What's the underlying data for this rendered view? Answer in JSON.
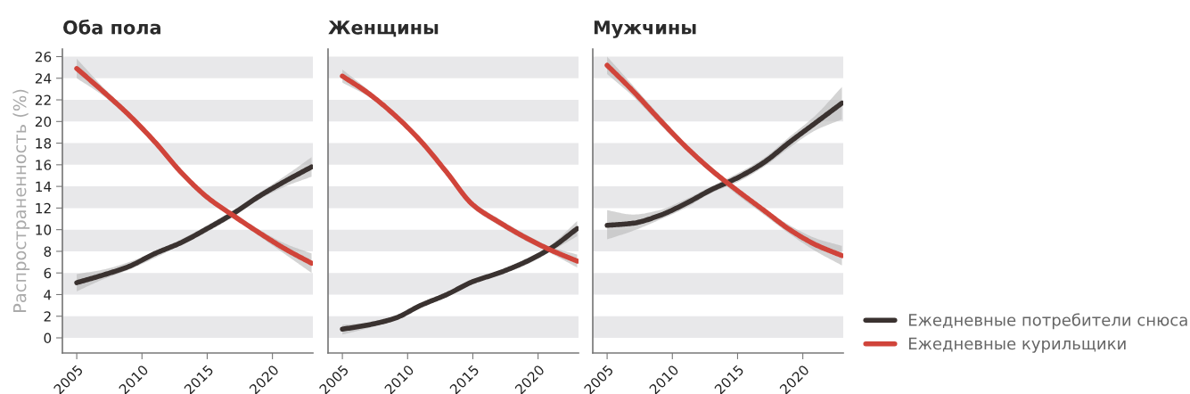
{
  "chart_data": [
    {
      "type": "line",
      "title": "Оба пола",
      "ylabel": "Распространенность (%)",
      "x": [
        2005,
        2007,
        2009,
        2011,
        2013,
        2015,
        2017,
        2019,
        2021,
        2023
      ],
      "xlim": [
        2003.9,
        2023.1
      ],
      "xticks": [
        2005,
        2010,
        2015,
        2020
      ],
      "ylim": [
        -1.4,
        26.7
      ],
      "yticks": [
        0,
        2,
        4,
        6,
        8,
        10,
        12,
        14,
        16,
        18,
        20,
        22,
        24,
        26
      ],
      "grid": false,
      "legend": "right",
      "bands": [
        {
          "axis": "y",
          "from": 0,
          "to": 2,
          "color": "#e8e8ea"
        },
        {
          "axis": "y",
          "from": 4,
          "to": 6,
          "color": "#e8e8ea"
        },
        {
          "axis": "y",
          "from": 8,
          "to": 10,
          "color": "#e8e8ea"
        },
        {
          "axis": "y",
          "from": 12,
          "to": 14,
          "color": "#e8e8ea"
        },
        {
          "axis": "y",
          "from": 16,
          "to": 18,
          "color": "#e8e8ea"
        },
        {
          "axis": "y",
          "from": 20,
          "to": 22,
          "color": "#e8e8ea"
        },
        {
          "axis": "y",
          "from": 24,
          "to": 26,
          "color": "#e8e8ea"
        }
      ],
      "series": [
        {
          "name": "Ежедневные потребители снюса",
          "color": "#3a3230",
          "values": [
            5.1,
            5.8,
            6.6,
            7.8,
            8.8,
            10.1,
            11.5,
            13.1,
            14.5,
            15.8
          ],
          "lower": [
            4.3,
            5.4,
            6.3,
            7.4,
            8.6,
            9.8,
            11.2,
            12.8,
            14.0,
            14.9
          ],
          "upper": [
            5.9,
            6.3,
            7.0,
            8.0,
            9.1,
            10.4,
            11.8,
            13.4,
            15.0,
            16.7
          ]
        },
        {
          "name": "Ежедневные курильщики",
          "color": "#d0443a",
          "values": [
            24.9,
            22.8,
            20.6,
            18.1,
            15.3,
            13.0,
            11.3,
            9.7,
            8.2,
            6.9
          ],
          "lower": [
            24.0,
            22.4,
            20.3,
            17.8,
            15.0,
            12.7,
            11.1,
            9.4,
            7.7,
            6.0
          ],
          "upper": [
            25.8,
            23.2,
            20.9,
            18.4,
            15.6,
            13.2,
            11.6,
            10.0,
            8.7,
            7.8
          ]
        }
      ]
    },
    {
      "type": "line",
      "title": "Женщины",
      "x": [
        2005,
        2007,
        2009,
        2011,
        2013,
        2015,
        2017,
        2019,
        2021,
        2023
      ],
      "xlim": [
        2003.9,
        2023.1
      ],
      "xticks": [
        2005,
        2010,
        2015,
        2020
      ],
      "ylim": [
        -1.4,
        26.7
      ],
      "yticks": [
        0,
        2,
        4,
        6,
        8,
        10,
        12,
        14,
        16,
        18,
        20,
        22,
        24,
        26
      ],
      "tick_labels": "x",
      "grid": false,
      "bands": [
        {
          "axis": "y",
          "from": 0,
          "to": 2,
          "color": "#e8e8ea"
        },
        {
          "axis": "y",
          "from": 4,
          "to": 6,
          "color": "#e8e8ea"
        },
        {
          "axis": "y",
          "from": 8,
          "to": 10,
          "color": "#e8e8ea"
        },
        {
          "axis": "y",
          "from": 12,
          "to": 14,
          "color": "#e8e8ea"
        },
        {
          "axis": "y",
          "from": 16,
          "to": 18,
          "color": "#e8e8ea"
        },
        {
          "axis": "y",
          "from": 20,
          "to": 22,
          "color": "#e8e8ea"
        },
        {
          "axis": "y",
          "from": 24,
          "to": 26,
          "color": "#e8e8ea"
        }
      ],
      "series": [
        {
          "color": "#3a3230",
          "values": [
            0.8,
            1.2,
            1.8,
            3.0,
            4.0,
            5.2,
            6.0,
            7.0,
            8.3,
            10.1
          ],
          "lower": [
            0.3,
            0.9,
            1.6,
            2.8,
            3.8,
            5.0,
            5.8,
            6.7,
            8.0,
            9.4
          ],
          "upper": [
            1.2,
            1.4,
            2.0,
            3.2,
            4.2,
            5.4,
            6.2,
            7.2,
            8.6,
            10.8
          ]
        },
        {
          "color": "#d0443a",
          "values": [
            24.2,
            22.6,
            20.6,
            18.2,
            15.3,
            12.3,
            10.7,
            9.3,
            8.1,
            7.1
          ],
          "lower": [
            23.6,
            22.3,
            20.4,
            18.0,
            15.0,
            12.0,
            10.4,
            9.0,
            7.8,
            6.5
          ],
          "upper": [
            24.8,
            22.9,
            20.8,
            18.4,
            15.6,
            12.6,
            11.0,
            9.6,
            8.4,
            7.7
          ]
        }
      ]
    },
    {
      "type": "line",
      "title": "Мужчины",
      "x": [
        2005,
        2007,
        2009,
        2011,
        2013,
        2015,
        2017,
        2019,
        2021,
        2023
      ],
      "xlim": [
        2003.9,
        2023.1
      ],
      "xticks": [
        2005,
        2010,
        2015,
        2020
      ],
      "ylim": [
        -1.4,
        26.7
      ],
      "yticks": [
        0,
        2,
        4,
        6,
        8,
        10,
        12,
        14,
        16,
        18,
        20,
        22,
        24,
        26
      ],
      "tick_labels": "x",
      "grid": false,
      "bands": [
        {
          "axis": "y",
          "from": 0,
          "to": 2,
          "color": "#e8e8ea"
        },
        {
          "axis": "y",
          "from": 4,
          "to": 6,
          "color": "#e8e8ea"
        },
        {
          "axis": "y",
          "from": 8,
          "to": 10,
          "color": "#e8e8ea"
        },
        {
          "axis": "y",
          "from": 12,
          "to": 14,
          "color": "#e8e8ea"
        },
        {
          "axis": "y",
          "from": 16,
          "to": 18,
          "color": "#e8e8ea"
        },
        {
          "axis": "y",
          "from": 20,
          "to": 22,
          "color": "#e8e8ea"
        },
        {
          "axis": "y",
          "from": 24,
          "to": 26,
          "color": "#e8e8ea"
        }
      ],
      "series": [
        {
          "color": "#3a3230",
          "values": [
            10.4,
            10.6,
            11.3,
            12.4,
            13.7,
            14.8,
            16.2,
            18.1,
            19.9,
            21.7
          ],
          "lower": [
            9.1,
            9.9,
            10.9,
            12.0,
            13.4,
            14.4,
            15.8,
            17.6,
            19.2,
            20.2
          ],
          "upper": [
            11.8,
            11.4,
            11.8,
            12.8,
            14.0,
            15.2,
            16.6,
            18.6,
            20.6,
            23.2
          ]
        },
        {
          "color": "#d0443a",
          "values": [
            25.2,
            22.8,
            20.2,
            17.7,
            15.5,
            13.6,
            11.8,
            10.0,
            8.6,
            7.6
          ],
          "lower": [
            24.4,
            22.3,
            19.8,
            17.4,
            15.2,
            13.2,
            11.4,
            9.6,
            8.0,
            6.7
          ],
          "upper": [
            26.0,
            23.3,
            20.6,
            18.0,
            15.8,
            13.8,
            12.0,
            10.4,
            9.2,
            8.5
          ]
        }
      ]
    }
  ]
}
